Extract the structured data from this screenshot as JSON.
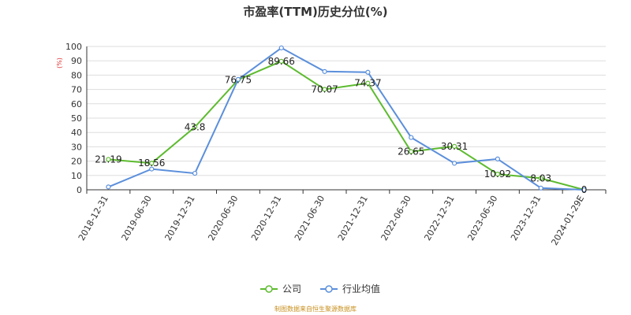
{
  "chart_data": {
    "type": "line",
    "title": "市盈率(TTM)历史分位(%)",
    "ylabel": "(%)",
    "xlabel": "",
    "ylim": [
      0,
      100
    ],
    "yticks": [
      0,
      10,
      20,
      30,
      40,
      50,
      60,
      70,
      80,
      90,
      100
    ],
    "grid": true,
    "legend_position": "bottom",
    "categories": [
      "2018-12-31",
      "2019-06-30",
      "2019-12-31",
      "2020-06-30",
      "2020-12-31",
      "2021-06-30",
      "2021-12-31",
      "2022-06-30",
      "2022-12-31",
      "2023-06-30",
      "2023-12-31",
      "2024-01-29E"
    ],
    "series": [
      {
        "name": "公司",
        "color": "#5dbb2f",
        "values": [
          21.19,
          18.56,
          43.8,
          76.75,
          89.66,
          70.07,
          74.37,
          26.65,
          30.31,
          10.92,
          8.03,
          0
        ],
        "labels": [
          "21.19",
          "18.56",
          "43.8",
          "76.75",
          "89.66",
          "70.07",
          "74.37",
          "26.65",
          "30.31",
          "10.92",
          "8.03",
          "0"
        ]
      },
      {
        "name": "行业均值",
        "color": "#5b8fdb",
        "values": [
          2,
          14.5,
          11.5,
          77,
          99,
          82.5,
          82,
          36.5,
          18.5,
          21.5,
          1.2,
          0
        ]
      }
    ]
  },
  "source_note": "制图数据来自恒生聚源数据库"
}
